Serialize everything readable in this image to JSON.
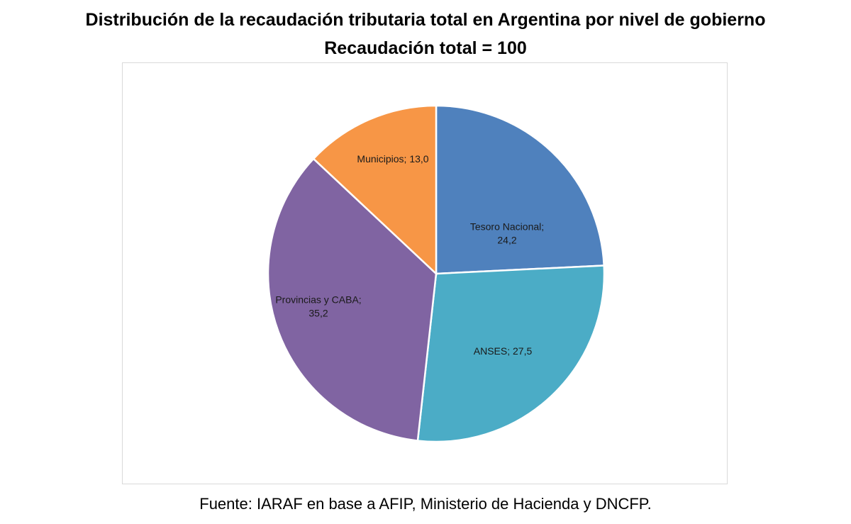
{
  "chart_data": {
    "type": "pie",
    "title": "Distribución de la recaudación tributaria total en Argentina por nivel de gobierno",
    "subtitle": "Recaudación total = 100",
    "slices": [
      {
        "label": "Tesoro Nacional",
        "value": 24.2,
        "display": [
          "Tesoro Nacional;",
          "24,2"
        ],
        "color": "#4F81BD"
      },
      {
        "label": "ANSES",
        "value": 27.5,
        "display": [
          "ANSES;  27,5"
        ],
        "color": "#4BACC6"
      },
      {
        "label": "Provincias y CABA",
        "value": 35.2,
        "display": [
          "Provincias y CABA;",
          "35,2"
        ],
        "color": "#8064A2"
      },
      {
        "label": "Municipios",
        "value": 13.0,
        "display": [
          "Municipios;  13,0"
        ],
        "color": "#F79646"
      }
    ],
    "legend": "none",
    "start": "top",
    "direction": "clockwise"
  },
  "source": "Fuente: IARAF en base a AFIP, Ministerio de Hacienda y DNCFP."
}
